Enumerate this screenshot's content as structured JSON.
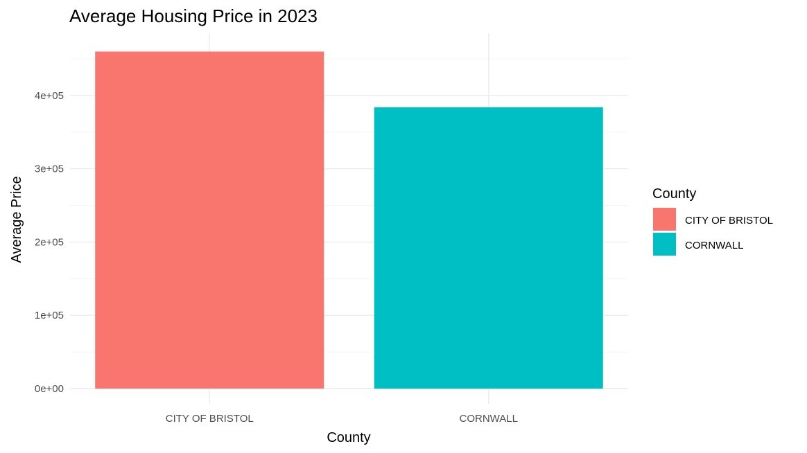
{
  "chart_data": {
    "type": "bar",
    "title": "Average Housing Price in 2023",
    "xlabel": "County",
    "ylabel": "Average Price",
    "categories": [
      "CITY OF BRISTOL",
      "CORNWALL"
    ],
    "values": [
      460000,
      384000
    ],
    "colors": [
      "#f8766d",
      "#00bfc4"
    ],
    "ylim": [
      0,
      485000
    ],
    "yticks": [
      0,
      100000,
      200000,
      300000,
      400000
    ],
    "ytick_labels": [
      "0e+00",
      "1e+05",
      "2e+05",
      "3e+05",
      "4e+05"
    ],
    "grid": true,
    "legend": {
      "title": "County",
      "position": "right",
      "items": [
        "CITY OF BRISTOL",
        "CORNWALL"
      ]
    }
  }
}
